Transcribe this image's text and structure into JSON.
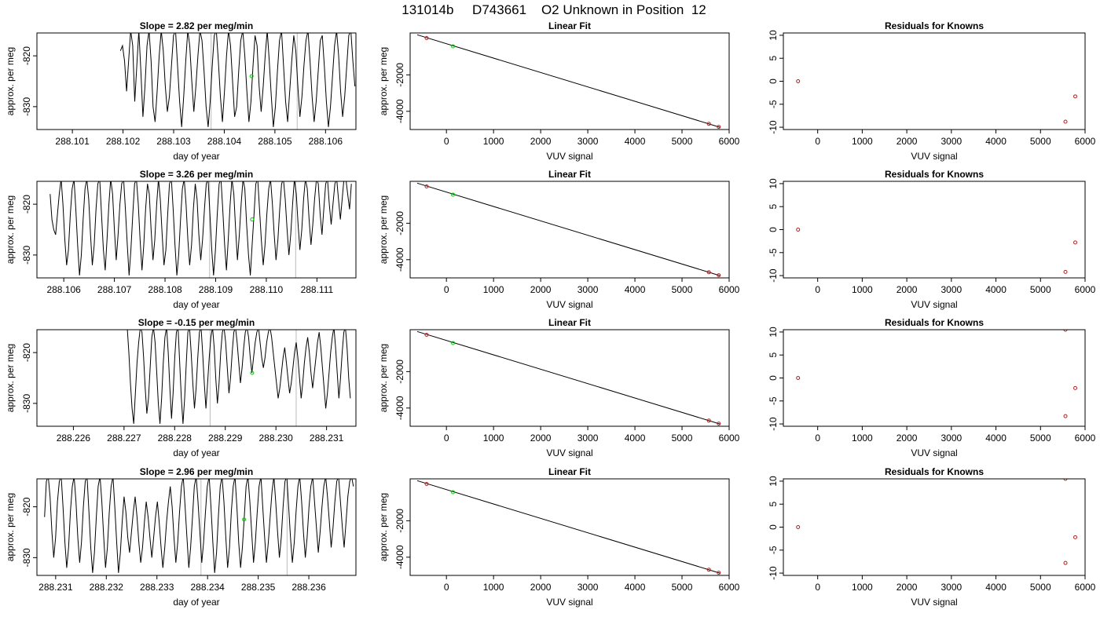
{
  "suptitle": "131014b     D743661    O2 Unknown in Position  12",
  "colors": {
    "line": "#000000",
    "unknown": "#00cc00",
    "known": "#b22222",
    "marker": "#bbbbbb",
    "frame": "#000000"
  },
  "rows": [
    {
      "slope": {
        "title": "Slope =  2.82  per meg/min",
        "xlabel": "day of year",
        "ylabel": "approx. per meg",
        "xlim": [
          288.1003,
          288.1066
        ],
        "ylim": [
          -834.5,
          -815.5
        ],
        "xticks": [
          "288.101",
          "288.102",
          "288.103",
          "288.104",
          "288.105",
          "288.106"
        ],
        "yticks": [
          "-820",
          "-830"
        ],
        "markers": [
          288.10374,
          288.10544
        ],
        "point": [
          288.10454,
          -824.0
        ],
        "x0": 288.10195,
        "x1": 288.10658,
        "y": [
          -819,
          -818,
          -821,
          -827,
          -821,
          -815,
          -818,
          -829,
          -822,
          -815,
          -823,
          -832,
          -826,
          -818,
          -815,
          -821,
          -830,
          -833,
          -827,
          -820,
          -815,
          -819,
          -826,
          -831,
          -828,
          -822,
          -816,
          -815,
          -822,
          -829,
          -834,
          -828,
          -821,
          -815,
          -818,
          -825,
          -831,
          -826,
          -820,
          -815,
          -817,
          -823,
          -830,
          -834,
          -829,
          -822,
          -816,
          -815,
          -821,
          -828,
          -833,
          -827,
          -820,
          -815,
          -818,
          -825,
          -832,
          -830,
          -823,
          -817,
          -815,
          -820,
          -827,
          -833,
          -829,
          -822,
          -816,
          -818,
          -826,
          -831,
          -826,
          -820,
          -815,
          -821,
          -828,
          -834,
          -830,
          -823,
          -817,
          -815,
          -822,
          -829,
          -833,
          -827,
          -821,
          -816,
          -819,
          -826,
          -832,
          -828,
          -822,
          -817,
          -815,
          -821,
          -828,
          -833,
          -829,
          -823,
          -817,
          -816,
          -822,
          -829,
          -834,
          -830,
          -824,
          -818,
          -815,
          -820,
          -827,
          -832,
          -828,
          -822,
          -816,
          -815,
          -821,
          -826
        ]
      },
      "fit": {
        "title": "Linear Fit",
        "xlabel": "VUV signal",
        "ylabel": "approx. per meg",
        "xlim": [
          -770,
          6000
        ],
        "ylim": [
          -5000,
          300
        ],
        "xticks": [
          0,
          1000,
          2000,
          3000,
          4000,
          5000,
          6000
        ],
        "yticks": [
          -2000,
          -4000
        ],
        "line": [
          [
            -620,
            200
          ],
          [
            5810,
            -4880
          ]
        ],
        "known": [
          [
            -420,
            20
          ],
          [
            5570,
            -4690
          ],
          [
            5780,
            -4855
          ]
        ],
        "unknown": [
          [
            140,
            -430
          ]
        ]
      },
      "resid": {
        "title": "Residuals for Knowns",
        "xlabel": "VUV signal",
        "xlim": [
          -770,
          6000
        ],
        "ylim": [
          -10.5,
          10.5
        ],
        "xticks": [
          0,
          1000,
          2000,
          3000,
          4000,
          5000,
          6000
        ],
        "yticks": [
          10,
          5,
          0,
          -5,
          -10
        ],
        "points": [
          [
            -440,
            0
          ],
          [
            5560,
            -8.8
          ],
          [
            5780,
            -3.3
          ]
        ]
      }
    },
    {
      "slope": {
        "title": "Slope =  3.26  per meg/min",
        "xlabel": "day of year",
        "ylabel": "approx. per meg",
        "xlim": [
          288.10547,
          288.11177
        ],
        "ylim": [
          -834.5,
          -815.5
        ],
        "xticks": [
          "288.106",
          "288.107",
          "288.108",
          "288.109",
          "288.110",
          "288.111"
        ],
        "yticks": [
          "-820",
          "-830"
        ],
        "markers": [
          288.10888,
          288.11058
        ],
        "point": [
          288.10972,
          -823.0
        ],
        "x0": 288.10573,
        "x1": 288.11168,
        "y": [
          -818,
          -823,
          -825,
          -826,
          -822,
          -818,
          -815,
          -820,
          -827,
          -832,
          -829,
          -822,
          -817,
          -815,
          -821,
          -828,
          -834,
          -830,
          -823,
          -817,
          -815,
          -819,
          -826,
          -832,
          -828,
          -821,
          -816,
          -815,
          -822,
          -829,
          -833,
          -827,
          -820,
          -815,
          -818,
          -825,
          -831,
          -826,
          -820,
          -816,
          -815,
          -821,
          -828,
          -834,
          -829,
          -822,
          -816,
          -815,
          -820,
          -827,
          -833,
          -828,
          -821,
          -816,
          -818,
          -825,
          -831,
          -827,
          -820,
          -815,
          -819,
          -826,
          -832,
          -829,
          -822,
          -816,
          -815,
          -821,
          -828,
          -834,
          -830,
          -823,
          -817,
          -815,
          -820,
          -827,
          -832,
          -828,
          -821,
          -816,
          -819,
          -826,
          -831,
          -827,
          -821,
          -816,
          -815,
          -822,
          -829,
          -834,
          -829,
          -822,
          -816,
          -815,
          -821,
          -828,
          -833,
          -827,
          -820,
          -815,
          -818,
          -825,
          -831,
          -826,
          -820,
          -815,
          -817,
          -824,
          -830,
          -834,
          -828,
          -822,
          -816,
          -815,
          -821,
          -827,
          -832,
          -828,
          -822,
          -817,
          -815,
          -820,
          -826,
          -831,
          -827,
          -821,
          -816,
          -815,
          -819,
          -825,
          -830,
          -826,
          -820,
          -815,
          -818,
          -824,
          -829,
          -825,
          -819,
          -815,
          -817,
          -823,
          -828,
          -824,
          -819,
          -815,
          -816,
          -822,
          -826,
          -821,
          -816,
          -815,
          -820,
          -824,
          -820,
          -816,
          -815,
          -819,
          -823,
          -819,
          -815,
          -815,
          -818,
          -821,
          -816
        ]
      },
      "fit": {
        "title": "Linear Fit",
        "xlabel": "VUV signal",
        "ylabel": "approx. per meg",
        "xlim": [
          -770,
          6000
        ],
        "ylim": [
          -5000,
          300
        ],
        "xticks": [
          0,
          1000,
          2000,
          3000,
          4000,
          5000,
          6000
        ],
        "yticks": [
          -2000,
          -4000
        ],
        "line": [
          [
            -620,
            200
          ],
          [
            5810,
            -4880
          ]
        ],
        "known": [
          [
            -420,
            20
          ],
          [
            5570,
            -4690
          ],
          [
            5780,
            -4855
          ]
        ],
        "unknown": [
          [
            140,
            -430
          ]
        ]
      },
      "resid": {
        "title": "Residuals for Knowns",
        "xlabel": "VUV signal",
        "xlim": [
          -770,
          6000
        ],
        "ylim": [
          -10.5,
          10.5
        ],
        "xticks": [
          0,
          1000,
          2000,
          3000,
          4000,
          5000,
          6000
        ],
        "yticks": [
          10,
          5,
          0,
          -5,
          -10
        ],
        "points": [
          [
            -440,
            0
          ],
          [
            5560,
            -9.2
          ],
          [
            5780,
            -2.8
          ]
        ]
      }
    },
    {
      "slope": {
        "title": "Slope =  -0.15  per meg/min",
        "xlabel": "day of year",
        "ylabel": "approx. per meg",
        "xlim": [
          288.22528,
          288.23158
        ],
        "ylim": [
          -834.5,
          -815.5
        ],
        "xticks": [
          "288.226",
          "288.227",
          "288.228",
          "288.229",
          "288.230",
          "288.231"
        ],
        "yticks": [
          "-820",
          "-830"
        ],
        "markers": [
          288.2287,
          288.2304
        ],
        "point": [
          288.22953,
          -824.0
        ],
        "x0": 288.22703,
        "x1": 288.23147,
        "y": [
          -815,
          -815,
          -820,
          -826,
          -831,
          -834,
          -828,
          -822,
          -818,
          -815,
          -816,
          -821,
          -827,
          -832,
          -829,
          -823,
          -817,
          -815,
          -818,
          -824,
          -830,
          -834,
          -829,
          -822,
          -817,
          -815,
          -820,
          -827,
          -833,
          -828,
          -821,
          -816,
          -815,
          -822,
          -829,
          -834,
          -829,
          -822,
          -816,
          -815,
          -820,
          -826,
          -831,
          -827,
          -821,
          -816,
          -815,
          -820,
          -826,
          -831,
          -826,
          -821,
          -817,
          -815,
          -819,
          -825,
          -830,
          -826,
          -820,
          -816,
          -815,
          -818,
          -823,
          -828,
          -825,
          -820,
          -816,
          -815,
          -818,
          -822,
          -826,
          -823,
          -819,
          -816,
          -815,
          -817,
          -821,
          -824,
          -821,
          -818,
          -816,
          -815,
          -818,
          -821,
          -823,
          -821,
          -818,
          -816,
          -815,
          -817,
          -820,
          -823,
          -826,
          -829,
          -827,
          -824,
          -821,
          -819,
          -822,
          -825,
          -828,
          -826,
          -823,
          -820,
          -818,
          -821,
          -825,
          -829,
          -826,
          -822,
          -819,
          -817,
          -820,
          -824,
          -827,
          -824,
          -821,
          -818,
          -816,
          -819,
          -823,
          -827,
          -831,
          -828,
          -824,
          -820,
          -817,
          -815,
          -819,
          -824,
          -829,
          -825,
          -820,
          -816,
          -815,
          -819,
          -825,
          -829
        ]
      },
      "fit": {
        "title": "Linear Fit",
        "xlabel": "VUV signal",
        "ylabel": "approx. per meg",
        "xlim": [
          -770,
          6000
        ],
        "ylim": [
          -5000,
          300
        ],
        "xticks": [
          0,
          1000,
          2000,
          3000,
          4000,
          5000,
          6000
        ],
        "yticks": [
          -2000,
          -4000
        ],
        "line": [
          [
            -620,
            200
          ],
          [
            5810,
            -4880
          ]
        ],
        "known": [
          [
            -420,
            20
          ],
          [
            5570,
            -4690
          ],
          [
            5780,
            -4855
          ]
        ],
        "unknown": [
          [
            140,
            -430
          ]
        ]
      },
      "resid": {
        "title": "Residuals for Knowns",
        "xlabel": "VUV signal",
        "xlim": [
          -770,
          6000
        ],
        "ylim": [
          -10.5,
          10.5
        ],
        "xticks": [
          0,
          1000,
          2000,
          3000,
          4000,
          5000,
          6000
        ],
        "yticks": [
          10,
          5,
          0,
          -5,
          -10
        ],
        "points": [
          [
            -440,
            0
          ],
          [
            5560,
            10.5
          ],
          [
            5560,
            -8.3
          ],
          [
            5780,
            -2.2
          ]
        ]
      }
    },
    {
      "slope": {
        "title": "Slope =  2.96  per meg/min",
        "xlabel": "day of year",
        "ylabel": "approx. per meg",
        "xlim": [
          288.23063,
          288.23693
        ],
        "ylim": [
          -833.5,
          -814.5
        ],
        "xticks": [
          "288.231",
          "288.232",
          "288.233",
          "288.234",
          "288.235",
          "288.236"
        ],
        "yticks": [
          "-820",
          "-830"
        ],
        "markers": [
          288.23387,
          288.23557
        ],
        "point": [
          288.23472,
          -822.5
        ],
        "x0": 288.23078,
        "x1": 288.23688,
        "y": [
          -822,
          -815,
          -814,
          -818,
          -825,
          -830,
          -826,
          -819,
          -815,
          -814,
          -820,
          -827,
          -832,
          -828,
          -821,
          -816,
          -814,
          -819,
          -826,
          -831,
          -827,
          -820,
          -815,
          -814,
          -821,
          -828,
          -833,
          -829,
          -822,
          -816,
          -814,
          -819,
          -826,
          -832,
          -828,
          -821,
          -816,
          -814,
          -820,
          -827,
          -833,
          -829,
          -823,
          -818,
          -821,
          -826,
          -829,
          -825,
          -821,
          -818,
          -822,
          -827,
          -831,
          -828,
          -823,
          -819,
          -822,
          -826,
          -830,
          -826,
          -822,
          -819,
          -823,
          -828,
          -832,
          -828,
          -823,
          -819,
          -816,
          -820,
          -826,
          -831,
          -827,
          -821,
          -816,
          -814,
          -820,
          -826,
          -832,
          -828,
          -822,
          -816,
          -814,
          -819,
          -825,
          -831,
          -827,
          -821,
          -816,
          -814,
          -820,
          -827,
          -833,
          -829,
          -822,
          -816,
          -814,
          -819,
          -826,
          -832,
          -828,
          -821,
          -816,
          -814,
          -820,
          -827,
          -832,
          -828,
          -822,
          -816,
          -814,
          -819,
          -825,
          -831,
          -827,
          -821,
          -816,
          -814,
          -820,
          -826,
          -831,
          -827,
          -822,
          -817,
          -814,
          -819,
          -825,
          -830,
          -826,
          -820,
          -815,
          -814,
          -820,
          -826,
          -831,
          -827,
          -821,
          -816,
          -814,
          -819,
          -825,
          -830,
          -826,
          -820,
          -816,
          -814,
          -819,
          -824,
          -829,
          -825,
          -820,
          -816,
          -814,
          -818,
          -823,
          -828,
          -824,
          -819,
          -815,
          -814,
          -819,
          -824,
          -828,
          -823,
          -818,
          -815,
          -814,
          -816
        ]
      },
      "fit": {
        "title": "Linear Fit",
        "xlabel": "VUV signal",
        "ylabel": "approx. per meg",
        "xlim": [
          -770,
          6000
        ],
        "ylim": [
          -5000,
          300
        ],
        "xticks": [
          0,
          1000,
          2000,
          3000,
          4000,
          5000,
          6000
        ],
        "yticks": [
          -2000,
          -4000
        ],
        "line": [
          [
            -620,
            200
          ],
          [
            5810,
            -4880
          ]
        ],
        "known": [
          [
            -420,
            20
          ],
          [
            5570,
            -4690
          ],
          [
            5780,
            -4855
          ]
        ],
        "unknown": [
          [
            140,
            -430
          ]
        ]
      },
      "resid": {
        "title": "Residuals for Knowns",
        "xlabel": "VUV signal",
        "xlim": [
          -770,
          6000
        ],
        "ylim": [
          -10.5,
          10.5
        ],
        "xticks": [
          0,
          1000,
          2000,
          3000,
          4000,
          5000,
          6000
        ],
        "yticks": [
          10,
          5,
          0,
          -5,
          -10
        ],
        "points": [
          [
            -440,
            0
          ],
          [
            5560,
            10.5
          ],
          [
            5560,
            -7.8
          ],
          [
            5780,
            -2.2
          ]
        ]
      }
    }
  ]
}
